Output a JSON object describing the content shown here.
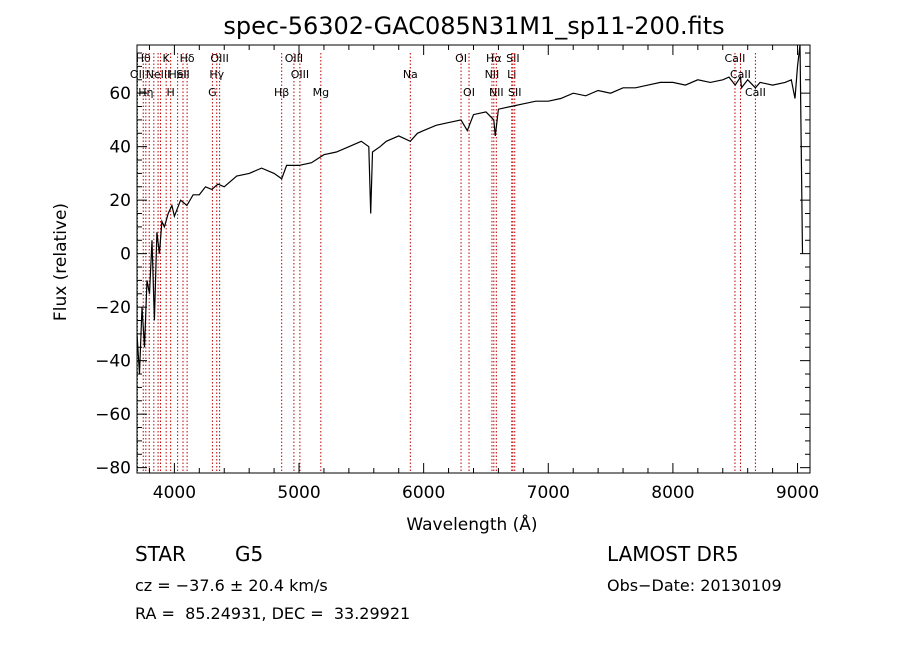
{
  "chart_data": {
    "type": "line",
    "title": "spec-56302-GAC085N31M1_sp11-200.fits",
    "xlabel": "Wavelength (Å)",
    "ylabel": "Flux (relative)",
    "xlim": [
      3700,
      9100
    ],
    "ylim": [
      -82,
      78
    ],
    "xticks": [
      "4000",
      "5000",
      "6000",
      "7000",
      "8000",
      "9000"
    ],
    "yticks": [
      "−80",
      "−60",
      "−40",
      "−20",
      "0",
      "20",
      "40",
      "60"
    ],
    "series": [
      {
        "x": [
          3700,
          3720,
          3740,
          3760,
          3780,
          3800,
          3820,
          3840,
          3860,
          3880,
          3900,
          3920,
          3950,
          3980,
          4000,
          4050,
          4100,
          4150,
          4200,
          4250,
          4300,
          4350,
          4400,
          4500,
          4600,
          4700,
          4800,
          4861,
          4900,
          5000,
          5100,
          5200,
          5300,
          5400,
          5500,
          5560,
          5575,
          5590,
          5650,
          5700,
          5800,
          5893,
          5950,
          6000,
          6100,
          6200,
          6300,
          6350,
          6400,
          6500,
          6563,
          6575,
          6600,
          6700,
          6800,
          6900,
          7000,
          7100,
          7200,
          7300,
          7400,
          7500,
          7600,
          7700,
          7800,
          7900,
          8000,
          8100,
          8200,
          8300,
          8400,
          8450,
          8500,
          8542,
          8550,
          8600,
          8662,
          8700,
          8800,
          8900,
          8950,
          8980,
          9000,
          9020,
          9040
        ],
        "y": [
          -30,
          -45,
          -20,
          -35,
          -10,
          -15,
          5,
          -25,
          8,
          0,
          12,
          10,
          15,
          18,
          14,
          20,
          18,
          22,
          22,
          25,
          24,
          26,
          25,
          29,
          30,
          32,
          30,
          28,
          33,
          33,
          34,
          37,
          38,
          40,
          42,
          40,
          15,
          38,
          40,
          42,
          44,
          42,
          45,
          46,
          48,
          49,
          50,
          46,
          52,
          53,
          50,
          44,
          54,
          55,
          56,
          57,
          57,
          58,
          60,
          59,
          61,
          60,
          62,
          62,
          63,
          64,
          64,
          63,
          65,
          64,
          65,
          66,
          63,
          66,
          62,
          65,
          62,
          64,
          63,
          64,
          65,
          58,
          70,
          80,
          0
        ]
      }
    ],
    "lines": [
      {
        "x": 3704,
        "label": "OII",
        "row": 2
      },
      {
        "x": 3750,
        "label": "Hθ",
        "row": 1
      },
      {
        "x": 3771,
        "label": "Hη",
        "row": 3
      },
      {
        "x": 3798,
        "label": "",
        "row": 0
      },
      {
        "x": 3835,
        "label": "",
        "row": 0
      },
      {
        "x": 3869,
        "label": "NeIII",
        "row": 2
      },
      {
        "x": 3889,
        "label": "",
        "row": 0
      },
      {
        "x": 3934,
        "label": "K",
        "row": 1
      },
      {
        "x": 3970,
        "label": "H",
        "row": 3
      },
      {
        "x": 4026,
        "label": "HeI",
        "row": 2
      },
      {
        "x": 4069,
        "label": "SII",
        "row": 2
      },
      {
        "x": 4102,
        "label": "Hδ",
        "row": 1
      },
      {
        "x": 4305,
        "label": "G",
        "row": 3
      },
      {
        "x": 4340,
        "label": "Hγ",
        "row": 2
      },
      {
        "x": 4363,
        "label": "OIII",
        "row": 1
      },
      {
        "x": 4861,
        "label": "Hβ",
        "row": 3
      },
      {
        "x": 4959,
        "label": "OIII",
        "row": 1
      },
      {
        "x": 5007,
        "label": "OIII",
        "row": 2
      },
      {
        "x": 5175,
        "label": "Mg",
        "row": 3
      },
      {
        "x": 5893,
        "label": "Na",
        "row": 2
      },
      {
        "x": 6300,
        "label": "OI",
        "row": 1
      },
      {
        "x": 6364,
        "label": "OI",
        "row": 3
      },
      {
        "x": 6548,
        "label": "NII",
        "row": 2
      },
      {
        "x": 6563,
        "label": "Hα",
        "row": 1
      },
      {
        "x": 6583,
        "label": "NII",
        "row": 3
      },
      {
        "x": 6707,
        "label": "Li",
        "row": 2
      },
      {
        "x": 6716,
        "label": "SII",
        "row": 1
      },
      {
        "x": 6731,
        "label": "SII",
        "row": 3
      },
      {
        "x": 8498,
        "label": "CaII",
        "row": 1
      },
      {
        "x": 8542,
        "label": "CaII",
        "row": 2
      },
      {
        "x": 8662,
        "label": "CaII",
        "row": 3
      }
    ]
  },
  "info": {
    "class": "STAR",
    "subclass": "G5",
    "cz": "cz = −37.6 ± 20.4 km/s",
    "coords": "RA =  85.24931, DEC =  33.29921",
    "survey": "LAMOST DR5",
    "obs_date": "Obs−Date: 20130109"
  }
}
